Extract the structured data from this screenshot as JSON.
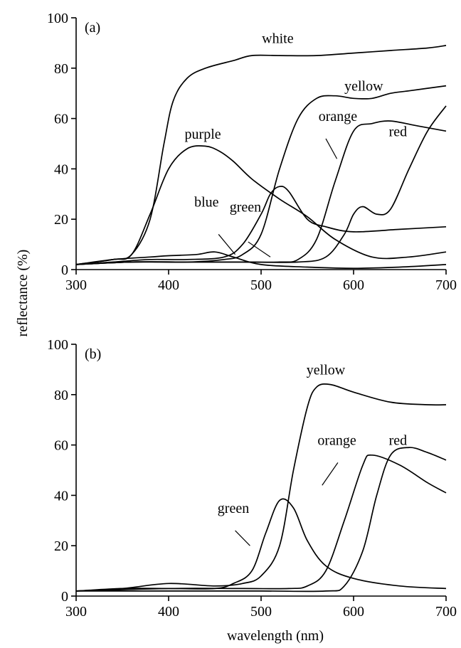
{
  "figure": {
    "ylabel": "reflectance (%)",
    "xlabel": "wavelength  (nm)"
  },
  "chart_data": [
    {
      "type": "line",
      "panel_label": "(a)",
      "xlim": [
        300,
        700
      ],
      "ylim": [
        0,
        100
      ],
      "xticks": [
        300,
        400,
        500,
        600,
        700
      ],
      "yticks": [
        0,
        20,
        40,
        60,
        80,
        100
      ],
      "grid": false,
      "series": [
        {
          "name": "white",
          "x": [
            300,
            340,
            360,
            380,
            395,
            405,
            420,
            440,
            470,
            490,
            520,
            560,
            600,
            640,
            680,
            700
          ],
          "y": [
            2,
            4,
            6,
            20,
            50,
            67,
            76,
            80,
            83,
            85,
            85,
            85,
            86,
            87,
            88,
            89
          ]
        },
        {
          "name": "purple",
          "x": [
            300,
            340,
            360,
            380,
            400,
            420,
            440,
            455,
            470,
            490,
            520,
            550,
            580,
            620,
            660,
            700
          ],
          "y": [
            2,
            4,
            6,
            22,
            40,
            48,
            49,
            47,
            43,
            36,
            28,
            21,
            12,
            5,
            5,
            7
          ]
        },
        {
          "name": "blue",
          "x": [
            300,
            340,
            380,
            400,
            430,
            450,
            470,
            500,
            550,
            600,
            650,
            700
          ],
          "y": [
            2,
            4,
            5,
            5.5,
            6,
            7,
            5,
            2,
            1,
            0.5,
            1,
            2
          ]
        },
        {
          "name": "green",
          "x": [
            300,
            340,
            380,
            420,
            460,
            480,
            500,
            510,
            520,
            530,
            550,
            570,
            600,
            650,
            700
          ],
          "y": [
            2,
            3,
            4,
            4,
            5,
            10,
            22,
            30,
            33,
            31,
            20,
            17,
            15,
            16,
            17
          ]
        },
        {
          "name": "yellow",
          "x": [
            300,
            360,
            420,
            460,
            480,
            500,
            520,
            540,
            560,
            580,
            600,
            620,
            640,
            660,
            700
          ],
          "y": [
            2,
            3,
            3,
            4,
            6,
            14,
            40,
            60,
            68,
            69,
            68,
            68,
            70,
            71,
            73
          ]
        },
        {
          "name": "orange",
          "x": [
            300,
            360,
            420,
            480,
            520,
            540,
            560,
            580,
            600,
            620,
            640,
            670,
            700
          ],
          "y": [
            2,
            3,
            3,
            3,
            3,
            4,
            12,
            35,
            55,
            58,
            59,
            57,
            55
          ]
        },
        {
          "name": "red",
          "x": [
            300,
            360,
            420,
            480,
            540,
            570,
            590,
            600,
            610,
            625,
            640,
            660,
            680,
            700
          ],
          "y": [
            2,
            3,
            3,
            3,
            3,
            5,
            14,
            22,
            25,
            22,
            24,
            40,
            55,
            65
          ]
        }
      ],
      "annotations": [
        {
          "text": "white",
          "x": 518,
          "y": 90
        },
        {
          "text": "purple",
          "x": 437,
          "y": 52
        },
        {
          "text": "blue",
          "x": 441,
          "y": 25
        },
        {
          "text": "green",
          "x": 483,
          "y": 23
        },
        {
          "text": "yellow",
          "x": 611,
          "y": 71
        },
        {
          "text": "orange",
          "x": 583,
          "y": 59
        },
        {
          "text": "red",
          "x": 648,
          "y": 53
        }
      ]
    },
    {
      "type": "line",
      "panel_label": "(b)",
      "xlim": [
        300,
        700
      ],
      "ylim": [
        0,
        100
      ],
      "xticks": [
        300,
        400,
        500,
        600,
        700
      ],
      "yticks": [
        0,
        20,
        40,
        60,
        80,
        100
      ],
      "grid": false,
      "series": [
        {
          "name": "green",
          "x": [
            300,
            350,
            400,
            450,
            470,
            490,
            505,
            520,
            535,
            550,
            570,
            600,
            650,
            700
          ],
          "y": [
            2,
            3,
            3,
            3,
            5,
            10,
            25,
            38,
            35,
            22,
            12,
            7,
            4,
            3
          ]
        },
        {
          "name": "yellow",
          "x": [
            300,
            350,
            400,
            450,
            480,
            500,
            520,
            535,
            550,
            560,
            575,
            600,
            640,
            680,
            700
          ],
          "y": [
            2,
            3,
            5,
            4,
            5,
            8,
            20,
            50,
            75,
            83,
            84,
            81,
            77,
            76,
            76
          ]
        },
        {
          "name": "orange",
          "x": [
            300,
            400,
            480,
            530,
            550,
            570,
            590,
            610,
            620,
            650,
            680,
            700
          ],
          "y": [
            2,
            3,
            3,
            3,
            4,
            10,
            30,
            52,
            56,
            52,
            45,
            41
          ]
        },
        {
          "name": "red",
          "x": [
            300,
            400,
            500,
            570,
            590,
            610,
            625,
            640,
            660,
            680,
            700
          ],
          "y": [
            2,
            2,
            2,
            2,
            4,
            18,
            40,
            56,
            59,
            57,
            54
          ]
        }
      ],
      "annotations": [
        {
          "text": "yellow",
          "x": 570,
          "y": 88
        },
        {
          "text": "orange",
          "x": 582,
          "y": 60
        },
        {
          "text": "red",
          "x": 648,
          "y": 60
        },
        {
          "text": "green",
          "x": 470,
          "y": 33
        }
      ]
    }
  ]
}
